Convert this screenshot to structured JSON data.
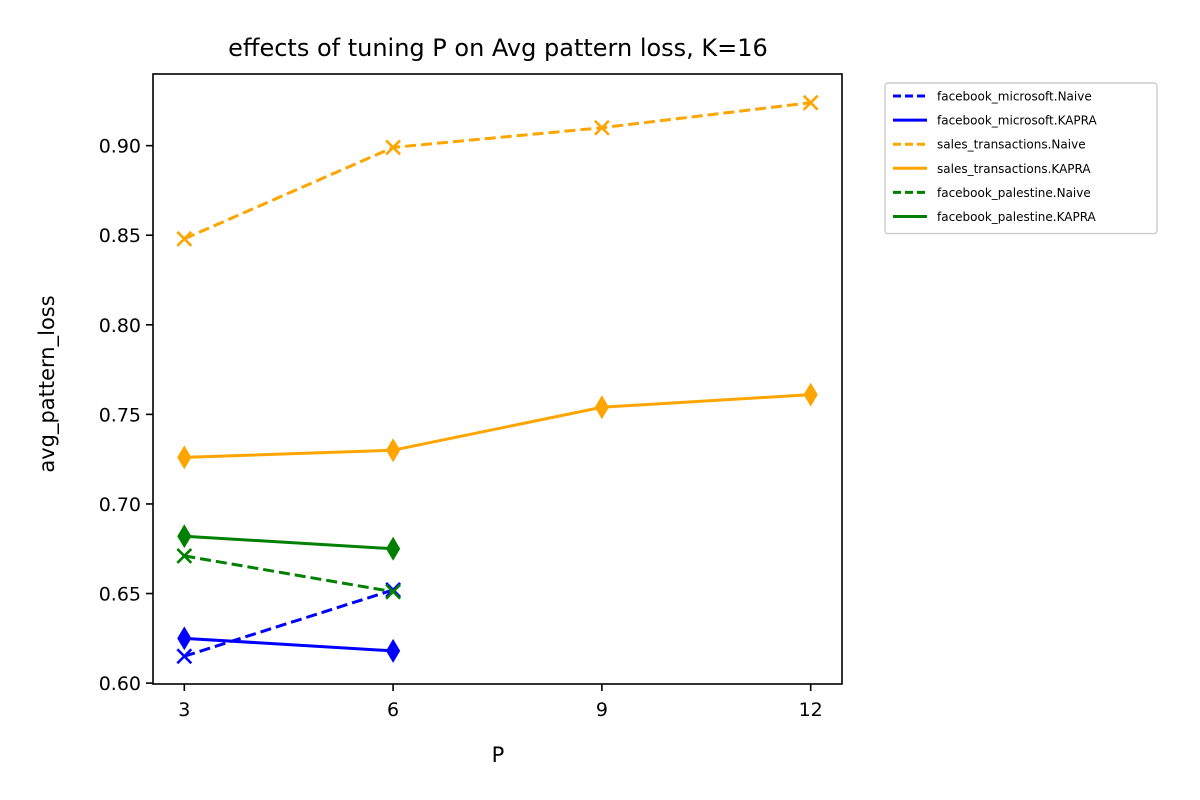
{
  "chart_data": {
    "type": "line",
    "title": "effects of tuning P on Avg pattern loss, K=16",
    "xlabel": "P",
    "ylabel": "avg_pattern_loss",
    "x_ticks": [
      3,
      6,
      9,
      12
    ],
    "y_ticks": [
      0.6,
      0.65,
      0.7,
      0.75,
      0.8,
      0.85,
      0.9
    ],
    "xlim": [
      2.55,
      12.45
    ],
    "ylim": [
      0.5995,
      0.94
    ],
    "grid": false,
    "legend_position": "outside top-right",
    "series": [
      {
        "name": "facebook_microsoft.Naive",
        "color": "#0000ff",
        "linestyle": "dashed",
        "marker": "x",
        "x": [
          3,
          6
        ],
        "y": [
          0.615,
          0.652
        ]
      },
      {
        "name": "facebook_microsoft.KAPRA",
        "color": "#0000ff",
        "linestyle": "solid",
        "marker": "diamond",
        "x": [
          3,
          6
        ],
        "y": [
          0.625,
          0.618
        ]
      },
      {
        "name": "sales_transactions.Naive",
        "color": "#ffa500",
        "linestyle": "dashed",
        "marker": "x",
        "x": [
          3,
          6,
          9,
          12
        ],
        "y": [
          0.848,
          0.899,
          0.91,
          0.924
        ]
      },
      {
        "name": "sales_transactions.KAPRA",
        "color": "#ffa500",
        "linestyle": "solid",
        "marker": "diamond",
        "x": [
          3,
          6,
          9,
          12
        ],
        "y": [
          0.726,
          0.73,
          0.754,
          0.761
        ]
      },
      {
        "name": "facebook_palestine.Naive",
        "color": "#008000",
        "linestyle": "dashed",
        "marker": "x",
        "x": [
          3,
          6
        ],
        "y": [
          0.671,
          0.651
        ]
      },
      {
        "name": "facebook_palestine.KAPRA",
        "color": "#008000",
        "linestyle": "solid",
        "marker": "diamond",
        "x": [
          3,
          6
        ],
        "y": [
          0.682,
          0.675
        ]
      }
    ]
  }
}
